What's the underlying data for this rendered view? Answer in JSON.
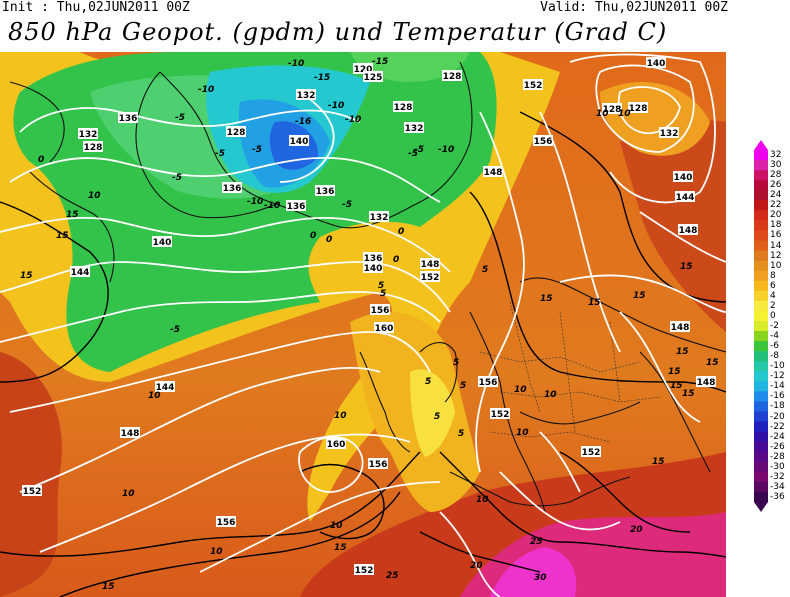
{
  "header": {
    "init": "Init : Thu,02JUN2011 00Z",
    "valid": "Valid: Thu,02JUN2011 00Z",
    "title": "850 hPa Geopot. (gpdm) und Temperatur (Grad C)"
  },
  "map": {
    "geopotential_labels": [
      "120",
      "125",
      "128",
      "128",
      "128",
      "128",
      "128",
      "128",
      "132",
      "132",
      "132",
      "132",
      "132",
      "136",
      "136",
      "136",
      "136",
      "136",
      "140",
      "140",
      "140",
      "140",
      "140",
      "144",
      "144",
      "144",
      "148",
      "148",
      "148",
      "148",
      "148",
      "148",
      "152",
      "152",
      "152",
      "152",
      "152",
      "152",
      "156",
      "156",
      "156",
      "156",
      "156",
      "160",
      "160"
    ],
    "temperature_labels": [
      "-5",
      "-10",
      "-10",
      "-15",
      "-16",
      "-10",
      "-10",
      "-15",
      "-5",
      "-5",
      "-10",
      "-5",
      "-10",
      "-5",
      "-5",
      "-10",
      "-5",
      "0",
      "0",
      "0",
      "0",
      "0",
      "5",
      "5",
      "5",
      "5",
      "5",
      "5",
      "5",
      "10",
      "10",
      "10",
      "10",
      "10",
      "10",
      "10",
      "10",
      "10",
      "10",
      "10",
      "10",
      "15",
      "15",
      "15",
      "15",
      "15",
      "15",
      "15",
      "15",
      "15",
      "15",
      "15",
      "15",
      "15",
      "15",
      "15",
      "20",
      "20",
      "25",
      "25",
      "30",
      "-5",
      "5"
    ]
  },
  "colorbar": {
    "ticks": [
      "32",
      "30",
      "28",
      "26",
      "24",
      "22",
      "20",
      "18",
      "16",
      "14",
      "12",
      "10",
      "8",
      "6",
      "4",
      "2",
      "0",
      "-2",
      "-4",
      "-6",
      "-8",
      "-10",
      "-12",
      "-14",
      "-16",
      "-18",
      "-20",
      "-22",
      "-24",
      "-26",
      "-28",
      "-30",
      "-32",
      "-34",
      "-36"
    ],
    "colors": [
      "#ee00ee",
      "#dd22aa",
      "#cc1166",
      "#b80a3a",
      "#b01030",
      "#c01818",
      "#d42a1a",
      "#d83a1a",
      "#e04a1a",
      "#e0601a",
      "#e07a1f",
      "#e4901e",
      "#f0a020",
      "#f7b81c",
      "#f8d02a",
      "#f8e840",
      "#f6f232",
      "#d8ec2a",
      "#88d41e",
      "#3cc63c",
      "#20c078",
      "#22c8a8",
      "#24c8d0",
      "#20b4e0",
      "#1e8ce8",
      "#1e64e0",
      "#2040d0",
      "#2020c0",
      "#3010a8",
      "#4a0a98",
      "#5a0a88",
      "#6a0a78",
      "#7a0a70",
      "#5a0860",
      "#3a0650"
    ]
  }
}
